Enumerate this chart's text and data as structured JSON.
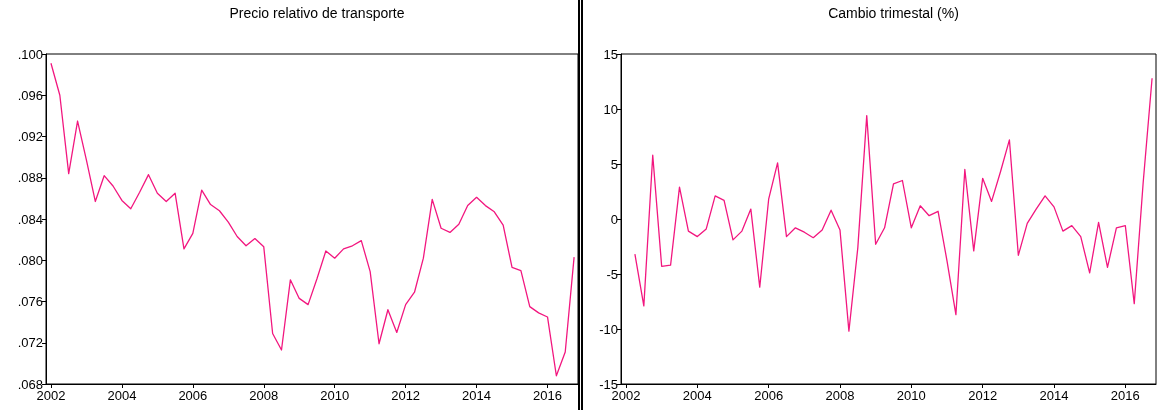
{
  "chart_data": [
    {
      "type": "line",
      "title": "Precio relativo de transporte",
      "x": [
        2002,
        2002.25,
        2002.5,
        2002.75,
        2003,
        2003.25,
        2003.5,
        2003.75,
        2004,
        2004.25,
        2004.5,
        2004.75,
        2005,
        2005.25,
        2005.5,
        2005.75,
        2006,
        2006.25,
        2006.5,
        2006.75,
        2007,
        2007.25,
        2007.5,
        2007.75,
        2008,
        2008.25,
        2008.5,
        2008.75,
        2009,
        2009.25,
        2009.5,
        2009.75,
        2010,
        2010.25,
        2010.5,
        2010.75,
        2011,
        2011.25,
        2011.5,
        2011.75,
        2012,
        2012.25,
        2012.5,
        2012.75,
        2013,
        2013.25,
        2013.5,
        2013.75,
        2014,
        2014.25,
        2014.5,
        2014.75,
        2015,
        2015.25,
        2015.5,
        2015.75,
        2016,
        2016.25,
        2016.5,
        2016.75
      ],
      "series": [
        {
          "color": "#f2177f",
          "values": [
            0.0991,
            0.096,
            0.0884,
            0.0935,
            0.0897,
            0.0857,
            0.0882,
            0.0872,
            0.0858,
            0.085,
            0.0866,
            0.0883,
            0.0865,
            0.0857,
            0.0865,
            0.0811,
            0.0826,
            0.0868,
            0.0854,
            0.0848,
            0.0837,
            0.0823,
            0.0814,
            0.0821,
            0.0813,
            0.0729,
            0.0713,
            0.0781,
            0.0763,
            0.0757,
            0.0782,
            0.0809,
            0.0802,
            0.0811,
            0.0814,
            0.0819,
            0.0789,
            0.0719,
            0.0752,
            0.073,
            0.0757,
            0.0769,
            0.0802,
            0.0859,
            0.0831,
            0.0827,
            0.0835,
            0.0853,
            0.0861,
            0.0853,
            0.0847,
            0.0834,
            0.0793,
            0.079,
            0.0755,
            0.0749,
            0.0745,
            0.0688,
            0.0711,
            0.0803
          ]
        }
      ],
      "xlim": [
        2001.86,
        2016.86
      ],
      "xticks": [
        2002,
        2004,
        2006,
        2008,
        2010,
        2012,
        2014,
        2016
      ],
      "ylim": [
        0.068,
        0.1
      ],
      "yticks": [
        {
          "value": 0.068,
          "label": ".068"
        },
        {
          "value": 0.072,
          "label": ".072"
        },
        {
          "value": 0.076,
          "label": ".076"
        },
        {
          "value": 0.08,
          "label": ".080"
        },
        {
          "value": 0.084,
          "label": ".084"
        },
        {
          "value": 0.088,
          "label": ".088"
        },
        {
          "value": 0.092,
          "label": ".092"
        },
        {
          "value": 0.096,
          "label": ".096"
        },
        {
          "value": 0.1,
          "label": ".100"
        }
      ],
      "grid": false,
      "marker": "none",
      "line_style": "solid"
    },
    {
      "type": "line",
      "title": "Cambio trimestal (%)",
      "x": [
        2002.25,
        2002.5,
        2002.75,
        2003,
        2003.25,
        2003.5,
        2003.75,
        2004,
        2004.25,
        2004.5,
        2004.75,
        2005,
        2005.25,
        2005.5,
        2005.75,
        2006,
        2006.25,
        2006.5,
        2006.75,
        2007,
        2007.25,
        2007.5,
        2007.75,
        2008,
        2008.25,
        2008.5,
        2008.75,
        2009,
        2009.25,
        2009.5,
        2009.75,
        2010,
        2010.25,
        2010.5,
        2010.75,
        2011,
        2011.25,
        2011.5,
        2011.75,
        2012,
        2012.25,
        2012.5,
        2012.75,
        2013,
        2013.25,
        2013.5,
        2013.75,
        2014,
        2014.25,
        2014.5,
        2014.75,
        2015,
        2015.25,
        2015.5,
        2015.75,
        2016,
        2016.25,
        2016.5,
        2016.75
      ],
      "series": [
        {
          "color": "#f2177f",
          "values": [
            -3.2,
            -7.9,
            5.8,
            -4.3,
            -4.2,
            2.9,
            -1.1,
            -1.6,
            -0.9,
            2.1,
            1.7,
            -1.9,
            -1.1,
            0.9,
            -6.2,
            1.8,
            5.1,
            -1.6,
            -0.8,
            -1.2,
            -1.7,
            -1.0,
            0.8,
            -1.0,
            -10.2,
            -2.6,
            9.4,
            -2.3,
            -0.8,
            3.2,
            3.5,
            -0.8,
            1.2,
            0.3,
            0.7,
            -3.8,
            -8.7,
            4.5,
            -2.9,
            3.7,
            1.6,
            4.3,
            7.2,
            -3.3,
            -0.4,
            0.9,
            2.1,
            1.1,
            -1.1,
            -0.6,
            -1.6,
            -4.9,
            -0.3,
            -4.4,
            -0.8,
            -0.6,
            -7.7,
            3.3,
            12.8
          ]
        }
      ],
      "xlim": [
        2001.86,
        2016.86
      ],
      "xticks": [
        2002,
        2004,
        2006,
        2008,
        2010,
        2012,
        2014,
        2016
      ],
      "ylim": [
        -15,
        15
      ],
      "yticks": [
        -15,
        -10,
        -5,
        0,
        5,
        10,
        15
      ],
      "grid": false,
      "marker": "none",
      "line_style": "solid"
    }
  ]
}
